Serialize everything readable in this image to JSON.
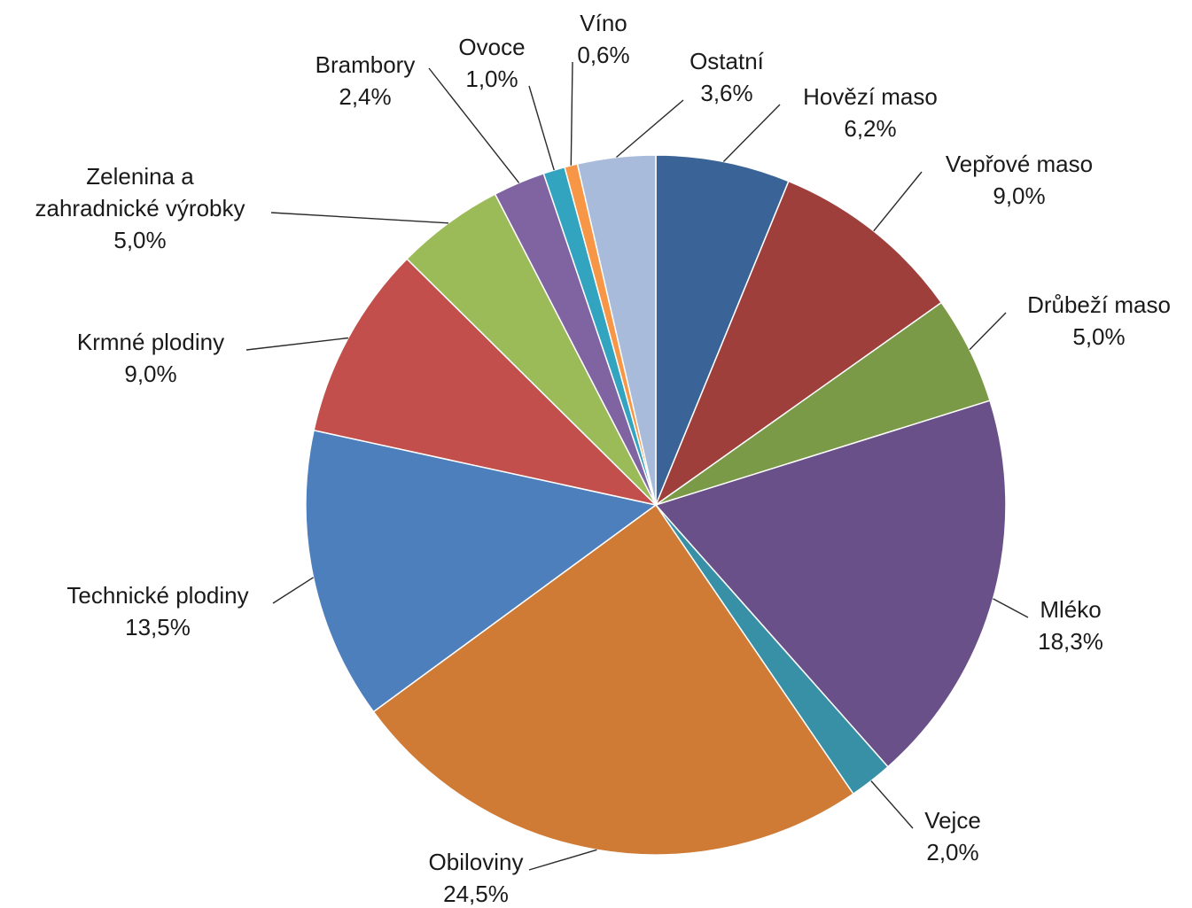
{
  "chart_data": {
    "type": "pie",
    "title": "",
    "start_angle_deg": 0,
    "direction": "clockwise",
    "slices": [
      {
        "label_lines": [
          "Hovězí maso"
        ],
        "value": 6.2,
        "value_text": "6,2%",
        "color": "#3A6497"
      },
      {
        "label_lines": [
          "Vepřové maso"
        ],
        "value": 9.0,
        "value_text": "9,0%",
        "color": "#9E3F3C"
      },
      {
        "label_lines": [
          "Drůbeží maso"
        ],
        "value": 5.0,
        "value_text": "5,0%",
        "color": "#7B9A47"
      },
      {
        "label_lines": [
          "Mléko"
        ],
        "value": 18.3,
        "value_text": "18,3%",
        "color": "#6A5088"
      },
      {
        "label_lines": [
          "Vejce"
        ],
        "value": 2.0,
        "value_text": "2,0%",
        "color": "#3790A5"
      },
      {
        "label_lines": [
          "Obiloviny"
        ],
        "value": 24.5,
        "value_text": "24,5%",
        "color": "#CF7A35"
      },
      {
        "label_lines": [
          "Technické plodiny"
        ],
        "value": 13.5,
        "value_text": "13,5%",
        "color": "#4E7FBD"
      },
      {
        "label_lines": [
          "Krmné plodiny"
        ],
        "value": 9.0,
        "value_text": "9,0%",
        "color": "#C24F4C"
      },
      {
        "label_lines": [
          "Zelenina a",
          "zahradnické výrobky"
        ],
        "value": 5.0,
        "value_text": "5,0%",
        "color": "#9BBB59"
      },
      {
        "label_lines": [
          "Brambory"
        ],
        "value": 2.4,
        "value_text": "2,4%",
        "color": "#8064A2"
      },
      {
        "label_lines": [
          "Ovoce"
        ],
        "value": 1.0,
        "value_text": "1,0%",
        "color": "#33A4BF"
      },
      {
        "label_lines": [
          "Víno"
        ],
        "value": 0.6,
        "value_text": "0,6%",
        "color": "#F79646"
      },
      {
        "label_lines": [
          "Ostatní"
        ],
        "value": 3.6,
        "value_text": "3,6%",
        "color": "#A9BBDA"
      }
    ]
  }
}
